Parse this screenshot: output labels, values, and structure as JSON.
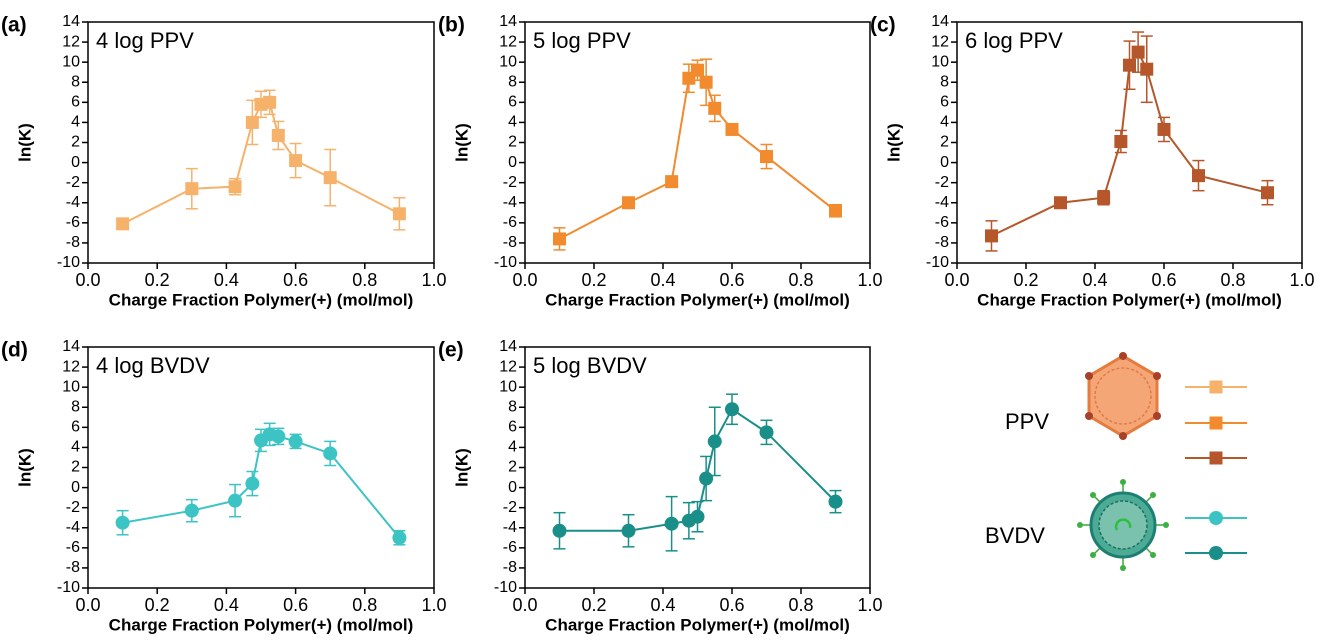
{
  "chart_data": [
    {
      "type": "line",
      "panel": "(a)",
      "title": "4 log PPV",
      "xlabel": "Charge Fraction Polymer(+) (mol/mol)",
      "ylabel": "ln(K)",
      "xlim": [
        0,
        1
      ],
      "xticks": [
        {
          "value": 0,
          "label": "0.0"
        },
        {
          "value": 0.2,
          "label": "0.2"
        },
        {
          "value": 0.4,
          "label": "0.4"
        },
        {
          "value": 0.6,
          "label": "0.6"
        },
        {
          "value": 0.8,
          "label": "0.8"
        },
        {
          "value": 1,
          "label": "1.0"
        }
      ],
      "ylim": [
        -10,
        14
      ],
      "yticks": [
        -10,
        -8,
        -6,
        -4,
        -2,
        0,
        2,
        4,
        6,
        8,
        10,
        12,
        14
      ],
      "series": [
        {
          "color": "#f6b26b",
          "marker": "square",
          "x": [
            0.1,
            0.3,
            0.425,
            0.475,
            0.5,
            0.525,
            0.55,
            0.6,
            0.7,
            0.9
          ],
          "values": [
            -6.1,
            -2.6,
            -2.4,
            4.0,
            5.8,
            6.0,
            2.7,
            0.2,
            -1.5,
            -5.1
          ],
          "errors": [
            0.5,
            2.0,
            0.8,
            2.2,
            1.3,
            1.2,
            1.4,
            1.7,
            2.8,
            1.6
          ]
        }
      ]
    },
    {
      "type": "line",
      "panel": "(b)",
      "title": "5 log PPV",
      "xlabel": "Charge Fraction Polymer(+) (mol/mol)",
      "ylabel": "ln(K)",
      "xlim": [
        0,
        1
      ],
      "xticks": [
        {
          "value": 0,
          "label": "0.0"
        },
        {
          "value": 0.2,
          "label": "0.2"
        },
        {
          "value": 0.4,
          "label": "0.4"
        },
        {
          "value": 0.6,
          "label": "0.6"
        },
        {
          "value": 0.8,
          "label": "0.8"
        },
        {
          "value": 1,
          "label": "1.0"
        }
      ],
      "ylim": [
        -10,
        14
      ],
      "yticks": [
        -10,
        -8,
        -6,
        -4,
        -2,
        0,
        2,
        4,
        6,
        8,
        10,
        12,
        14
      ],
      "series": [
        {
          "color": "#f28a2e",
          "marker": "square",
          "x": [
            0.1,
            0.3,
            0.425,
            0.475,
            0.5,
            0.525,
            0.55,
            0.6,
            0.7,
            0.9
          ],
          "values": [
            -7.6,
            -4.0,
            -1.9,
            8.4,
            9.2,
            8.0,
            5.4,
            3.3,
            0.6,
            -4.8
          ],
          "errors": [
            1.1,
            0.4,
            0.5,
            1.4,
            1.0,
            2.3,
            1.3,
            0.5,
            1.2,
            0.6
          ]
        }
      ]
    },
    {
      "type": "line",
      "panel": "(c)",
      "title": "6 log PPV",
      "xlabel": "Charge Fraction Polymer(+) (mol/mol)",
      "ylabel": "ln(K)",
      "xlim": [
        0,
        1
      ],
      "xticks": [
        {
          "value": 0,
          "label": "0.0"
        },
        {
          "value": 0.2,
          "label": "0.2"
        },
        {
          "value": 0.4,
          "label": "0.4"
        },
        {
          "value": 0.6,
          "label": "0.6"
        },
        {
          "value": 0.8,
          "label": "0.8"
        },
        {
          "value": 1,
          "label": "1.0"
        }
      ],
      "ylim": [
        -10,
        14
      ],
      "yticks": [
        -10,
        -8,
        -6,
        -4,
        -2,
        0,
        2,
        4,
        6,
        8,
        10,
        12,
        14
      ],
      "series": [
        {
          "color": "#b5572a",
          "marker": "square",
          "x": [
            0.1,
            0.3,
            0.425,
            0.475,
            0.5,
            0.525,
            0.55,
            0.6,
            0.7,
            0.9
          ],
          "values": [
            -7.3,
            -4.0,
            -3.5,
            2.1,
            9.7,
            11.0,
            9.3,
            3.3,
            -1.3,
            -3.0
          ],
          "errors": [
            1.5,
            0.4,
            0.7,
            1.1,
            2.4,
            2.0,
            3.3,
            1.2,
            1.5,
            1.2
          ]
        }
      ]
    },
    {
      "type": "line",
      "panel": "(d)",
      "title": "4 log BVDV",
      "xlabel": "Charge Fraction Polymer(+) (mol/mol)",
      "ylabel": "ln(K)",
      "xlim": [
        0,
        1
      ],
      "xticks": [
        {
          "value": 0,
          "label": "0.0"
        },
        {
          "value": 0.2,
          "label": "0.2"
        },
        {
          "value": 0.4,
          "label": "0.4"
        },
        {
          "value": 0.6,
          "label": "0.6"
        },
        {
          "value": 0.8,
          "label": "0.8"
        },
        {
          "value": 1,
          "label": "1.0"
        }
      ],
      "ylim": [
        -10,
        14
      ],
      "yticks": [
        -10,
        -8,
        -6,
        -4,
        -2,
        0,
        2,
        4,
        6,
        8,
        10,
        12,
        14
      ],
      "series": [
        {
          "color": "#3cc4c4",
          "marker": "circle",
          "x": [
            0.1,
            0.3,
            0.425,
            0.475,
            0.5,
            0.525,
            0.55,
            0.6,
            0.7,
            0.9
          ],
          "values": [
            -3.5,
            -2.3,
            -1.3,
            0.4,
            4.7,
            5.3,
            5.1,
            4.6,
            3.4,
            -5.0
          ],
          "errors": [
            1.2,
            1.1,
            1.6,
            1.2,
            1.1,
            1.1,
            0.8,
            0.7,
            1.2,
            0.7
          ]
        }
      ]
    },
    {
      "type": "line",
      "panel": "(e)",
      "title": "5 log BVDV",
      "xlabel": "Charge Fraction Polymer(+) (mol/mol)",
      "ylabel": "ln(K)",
      "xlim": [
        0,
        1
      ],
      "xticks": [
        {
          "value": 0,
          "label": "0.0"
        },
        {
          "value": 0.2,
          "label": "0.2"
        },
        {
          "value": 0.4,
          "label": "0.4"
        },
        {
          "value": 0.6,
          "label": "0.6"
        },
        {
          "value": 0.8,
          "label": "0.8"
        },
        {
          "value": 1,
          "label": "1.0"
        }
      ],
      "ylim": [
        -10,
        14
      ],
      "yticks": [
        -10,
        -8,
        -6,
        -4,
        -2,
        0,
        2,
        4,
        6,
        8,
        10,
        12,
        14
      ],
      "series": [
        {
          "color": "#1a8f8a",
          "marker": "circle",
          "x": [
            0.1,
            0.3,
            0.425,
            0.475,
            0.5,
            0.525,
            0.55,
            0.6,
            0.7,
            0.9
          ],
          "values": [
            -4.3,
            -4.3,
            -3.6,
            -3.3,
            -2.9,
            0.9,
            4.6,
            7.8,
            5.5,
            -1.4
          ],
          "errors": [
            1.8,
            1.6,
            2.7,
            1.8,
            1.5,
            2.2,
            3.4,
            1.5,
            1.2,
            1.1
          ]
        }
      ]
    }
  ],
  "legend": {
    "labels": [
      "PPV",
      "BVDV"
    ]
  }
}
